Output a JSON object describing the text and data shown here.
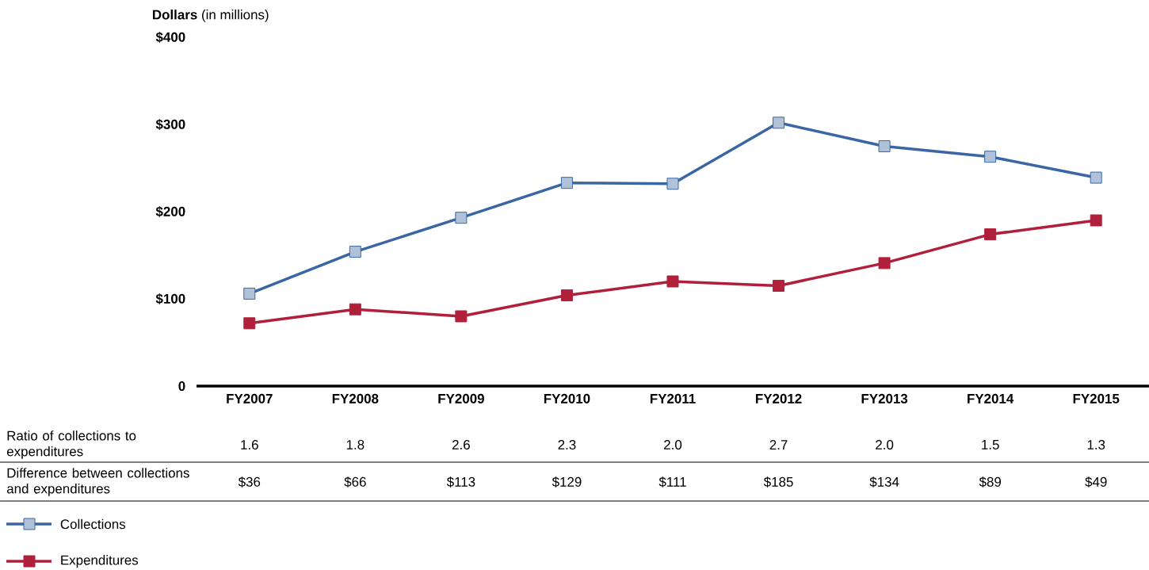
{
  "chart_data": {
    "type": "line",
    "ylabel": "**Dollars** (in millions)",
    "categories": [
      "FY2007",
      "FY2008",
      "FY2009",
      "FY2010",
      "FY2011",
      "FY2012",
      "FY2013",
      "FY2014",
      "FY2015"
    ],
    "series": [
      {
        "name": "Collections",
        "color": "#3a66a3",
        "values": [
          106,
          154,
          193,
          233,
          232,
          302,
          275,
          263,
          239
        ]
      },
      {
        "name": "Expenditures",
        "color": "#b0203a",
        "values": [
          72,
          88,
          80,
          104,
          120,
          115,
          141,
          174,
          190
        ]
      }
    ],
    "ylim": [
      0,
      400
    ],
    "yticks": [
      {
        "value": 0,
        "label": "0"
      },
      {
        "value": 100,
        "label": "$100"
      },
      {
        "value": 200,
        "label": "$200"
      },
      {
        "value": 300,
        "label": "$300"
      },
      {
        "value": 400,
        "label": "$400"
      }
    ],
    "grid": false,
    "legend": "bottom left",
    "marker": "square",
    "line_style": "solid",
    "annotations": [
      "Ratio of collections to expenditures",
      "1.6",
      "1.8",
      "2.6",
      "2.3",
      "2.0",
      "2.7",
      "2.0",
      "1.5",
      "1.3",
      "Difference between collections and expenditures",
      "$36",
      "$66",
      "$113",
      "$129",
      "$111",
      "$185",
      "$134",
      "$89",
      "$49"
    ]
  }
}
